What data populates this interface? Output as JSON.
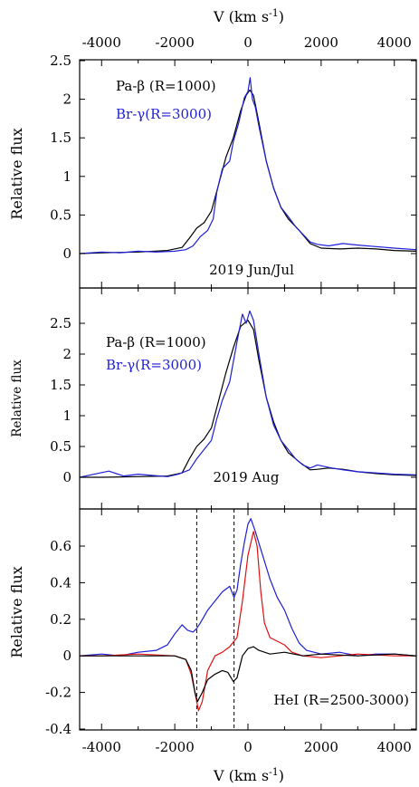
{
  "colors": {
    "black": "#000000",
    "blue": "#1f1fd6",
    "red": "#e01010"
  },
  "chart_data": [
    {
      "type": "line",
      "xlabel": "V (km s-1)",
      "xlim": [
        -4600,
        4600
      ],
      "xticks": [
        -4000,
        -2000,
        0,
        2000,
        4000
      ],
      "ylabel": "Relative flux",
      "ylim": [
        -0.25,
        2.5
      ],
      "yticks": [
        0,
        0.5,
        1,
        1.5,
        2,
        2.5
      ],
      "ytick_labels": [
        "0",
        "0.5",
        "1",
        "1.5",
        "2",
        "2.5"
      ],
      "legend": [
        "Pa-β (R=1000)",
        "Br-γ(R=3000)"
      ],
      "annotation": "2019 Jun/Jul",
      "series": [
        {
          "name": "Pa-β (R=1000)",
          "color": "black",
          "points": [
            [
              -4600,
              0.0
            ],
            [
              -4000,
              0.01
            ],
            [
              -3000,
              0.02
            ],
            [
              -2200,
              0.04
            ],
            [
              -1800,
              0.08
            ],
            [
              -1600,
              0.2
            ],
            [
              -1400,
              0.33
            ],
            [
              -1200,
              0.4
            ],
            [
              -1000,
              0.55
            ],
            [
              -800,
              0.9
            ],
            [
              -600,
              1.25
            ],
            [
              -400,
              1.5
            ],
            [
              -200,
              1.85
            ],
            [
              -50,
              2.05
            ],
            [
              50,
              2.12
            ],
            [
              150,
              2.05
            ],
            [
              300,
              1.7
            ],
            [
              500,
              1.2
            ],
            [
              700,
              0.85
            ],
            [
              900,
              0.6
            ],
            [
              1100,
              0.45
            ],
            [
              1400,
              0.3
            ],
            [
              1700,
              0.13
            ],
            [
              2000,
              0.07
            ],
            [
              2500,
              0.06
            ],
            [
              3000,
              0.07
            ],
            [
              3500,
              0.06
            ],
            [
              4000,
              0.04
            ],
            [
              4600,
              0.03
            ]
          ]
        },
        {
          "name": "Br-γ(R=3000)",
          "color": "blue",
          "points": [
            [
              -4600,
              0.0
            ],
            [
              -4000,
              0.02
            ],
            [
              -3500,
              0.01
            ],
            [
              -3000,
              0.03
            ],
            [
              -2500,
              0.02
            ],
            [
              -2000,
              0.03
            ],
            [
              -1700,
              0.05
            ],
            [
              -1500,
              0.1
            ],
            [
              -1300,
              0.22
            ],
            [
              -1100,
              0.3
            ],
            [
              -950,
              0.45
            ],
            [
              -850,
              0.8
            ],
            [
              -700,
              1.1
            ],
            [
              -500,
              1.2
            ],
            [
              -400,
              1.45
            ],
            [
              -250,
              1.7
            ],
            [
              -100,
              2.02
            ],
            [
              0,
              2.1
            ],
            [
              60,
              2.28
            ],
            [
              120,
              2.0
            ],
            [
              200,
              1.9
            ],
            [
              300,
              1.65
            ],
            [
              500,
              1.2
            ],
            [
              700,
              0.85
            ],
            [
              900,
              0.6
            ],
            [
              1100,
              0.48
            ],
            [
              1300,
              0.35
            ],
            [
              1500,
              0.25
            ],
            [
              1700,
              0.15
            ],
            [
              1900,
              0.12
            ],
            [
              2200,
              0.1
            ],
            [
              2600,
              0.13
            ],
            [
              3000,
              0.11
            ],
            [
              3500,
              0.09
            ],
            [
              4000,
              0.07
            ],
            [
              4600,
              0.05
            ]
          ]
        }
      ]
    },
    {
      "type": "line",
      "xlim": [
        -4600,
        4600
      ],
      "ylabel": "Relative flux",
      "ylim": [
        -0.5,
        2.9
      ],
      "yticks": [
        0,
        0.5,
        1,
        1.5,
        2,
        2.5
      ],
      "ytick_labels": [
        "0",
        "0.5",
        "1",
        "1.5",
        "2",
        "2.5"
      ],
      "legend": [
        "Pa-β (R=1000)",
        "Br-γ(R=3000)"
      ],
      "annotation": "2019 Aug",
      "series": [
        {
          "name": "Pa-β (R=1000)",
          "color": "black",
          "points": [
            [
              -4600,
              0.0
            ],
            [
              -4000,
              0.0
            ],
            [
              -3000,
              0.01
            ],
            [
              -2200,
              0.02
            ],
            [
              -1800,
              0.07
            ],
            [
              -1600,
              0.3
            ],
            [
              -1400,
              0.5
            ],
            [
              -1200,
              0.62
            ],
            [
              -1000,
              0.8
            ],
            [
              -800,
              1.25
            ],
            [
              -600,
              1.7
            ],
            [
              -400,
              2.1
            ],
            [
              -200,
              2.45
            ],
            [
              0,
              2.55
            ],
            [
              150,
              2.4
            ],
            [
              300,
              1.9
            ],
            [
              500,
              1.3
            ],
            [
              700,
              0.9
            ],
            [
              900,
              0.6
            ],
            [
              1100,
              0.4
            ],
            [
              1400,
              0.25
            ],
            [
              1700,
              0.12
            ],
            [
              1900,
              0.13
            ],
            [
              2200,
              0.15
            ],
            [
              2600,
              0.13
            ],
            [
              3000,
              0.09
            ],
            [
              3500,
              0.06
            ],
            [
              4000,
              0.04
            ],
            [
              4600,
              0.03
            ]
          ]
        },
        {
          "name": "Br-γ(R=3000)",
          "color": "blue",
          "points": [
            [
              -4600,
              0.0
            ],
            [
              -4200,
              0.05
            ],
            [
              -3800,
              0.1
            ],
            [
              -3400,
              0.02
            ],
            [
              -3000,
              0.05
            ],
            [
              -2600,
              0.03
            ],
            [
              -2200,
              0.01
            ],
            [
              -1900,
              0.05
            ],
            [
              -1600,
              0.12
            ],
            [
              -1400,
              0.3
            ],
            [
              -1200,
              0.45
            ],
            [
              -1000,
              0.6
            ],
            [
              -850,
              0.95
            ],
            [
              -700,
              1.25
            ],
            [
              -500,
              1.55
            ],
            [
              -300,
              2.2
            ],
            [
              -150,
              2.65
            ],
            [
              -50,
              2.5
            ],
            [
              50,
              2.7
            ],
            [
              150,
              2.55
            ],
            [
              300,
              2.0
            ],
            [
              500,
              1.3
            ],
            [
              700,
              0.85
            ],
            [
              900,
              0.6
            ],
            [
              1100,
              0.45
            ],
            [
              1300,
              0.3
            ],
            [
              1500,
              0.2
            ],
            [
              1700,
              0.15
            ],
            [
              1900,
              0.2
            ],
            [
              2200,
              0.16
            ],
            [
              2600,
              0.12
            ],
            [
              3000,
              0.09
            ],
            [
              3500,
              0.07
            ],
            [
              4000,
              0.05
            ],
            [
              4600,
              0.04
            ]
          ]
        }
      ]
    },
    {
      "type": "line",
      "xlabel": "V (km s-1)",
      "xlim": [
        -4600,
        4600
      ],
      "xticks": [
        -4000,
        -2000,
        0,
        2000,
        4000
      ],
      "ylabel": "Relative flux",
      "ylim": [
        -0.4,
        0.8
      ],
      "yticks": [
        -0.4,
        -0.2,
        0,
        0.2,
        0.4,
        0.6
      ],
      "ytick_labels": [
        "-0.4",
        "-0.2",
        "0",
        "0.2",
        "0.4",
        "0.6"
      ],
      "annotation": "HeI (R=2500-3000)",
      "vlines": [
        -1400,
        -380
      ],
      "series": [
        {
          "color": "blue",
          "points": [
            [
              -4600,
              0.0
            ],
            [
              -4000,
              0.01
            ],
            [
              -3500,
              0.0
            ],
            [
              -3000,
              0.02
            ],
            [
              -2500,
              0.03
            ],
            [
              -2200,
              0.06
            ],
            [
              -2000,
              0.12
            ],
            [
              -1800,
              0.17
            ],
            [
              -1650,
              0.14
            ],
            [
              -1500,
              0.13
            ],
            [
              -1400,
              0.15
            ],
            [
              -1300,
              0.18
            ],
            [
              -1100,
              0.25
            ],
            [
              -900,
              0.3
            ],
            [
              -700,
              0.35
            ],
            [
              -500,
              0.38
            ],
            [
              -380,
              0.32
            ],
            [
              -300,
              0.36
            ],
            [
              -200,
              0.5
            ],
            [
              -100,
              0.62
            ],
            [
              0,
              0.72
            ],
            [
              80,
              0.75
            ],
            [
              200,
              0.68
            ],
            [
              400,
              0.55
            ],
            [
              600,
              0.42
            ],
            [
              800,
              0.32
            ],
            [
              1000,
              0.25
            ],
            [
              1200,
              0.15
            ],
            [
              1400,
              0.07
            ],
            [
              1600,
              0.03
            ],
            [
              2000,
              0.01
            ],
            [
              2500,
              0.02
            ],
            [
              3000,
              0.0
            ],
            [
              3500,
              0.01
            ],
            [
              4000,
              0.01
            ],
            [
              4600,
              0.0
            ]
          ]
        },
        {
          "color": "red",
          "points": [
            [
              -4600,
              0.0
            ],
            [
              -4000,
              0.0
            ],
            [
              -3000,
              0.01
            ],
            [
              -2000,
              0.0
            ],
            [
              -1700,
              -0.02
            ],
            [
              -1550,
              -0.1
            ],
            [
              -1450,
              -0.2
            ],
            [
              -1350,
              -0.3
            ],
            [
              -1250,
              -0.25
            ],
            [
              -1100,
              -0.08
            ],
            [
              -900,
              0.0
            ],
            [
              -700,
              0.02
            ],
            [
              -500,
              0.05
            ],
            [
              -300,
              0.1
            ],
            [
              -150,
              0.3
            ],
            [
              0,
              0.55
            ],
            [
              150,
              0.68
            ],
            [
              250,
              0.6
            ],
            [
              350,
              0.35
            ],
            [
              450,
              0.18
            ],
            [
              600,
              0.1
            ],
            [
              800,
              0.08
            ],
            [
              1000,
              0.06
            ],
            [
              1200,
              0.02
            ],
            [
              1500,
              0.0
            ],
            [
              2000,
              -0.01
            ],
            [
              2500,
              0.0
            ],
            [
              3000,
              0.01
            ],
            [
              4000,
              0.0
            ],
            [
              4600,
              0.0
            ]
          ]
        },
        {
          "color": "black",
          "points": [
            [
              -4600,
              0.0
            ],
            [
              -3000,
              0.0
            ],
            [
              -2000,
              0.0
            ],
            [
              -1700,
              -0.02
            ],
            [
              -1550,
              -0.08
            ],
            [
              -1450,
              -0.2
            ],
            [
              -1380,
              -0.25
            ],
            [
              -1250,
              -0.2
            ],
            [
              -1100,
              -0.13
            ],
            [
              -900,
              -0.1
            ],
            [
              -700,
              -0.08
            ],
            [
              -550,
              -0.09
            ],
            [
              -400,
              -0.14
            ],
            [
              -300,
              -0.12
            ],
            [
              -150,
              0.0
            ],
            [
              0,
              0.04
            ],
            [
              150,
              0.05
            ],
            [
              300,
              0.03
            ],
            [
              600,
              0.01
            ],
            [
              1000,
              0.02
            ],
            [
              1500,
              0.0
            ],
            [
              2000,
              0.01
            ],
            [
              3000,
              0.0
            ],
            [
              4000,
              0.01
            ],
            [
              4600,
              0.0
            ]
          ]
        }
      ]
    }
  ]
}
